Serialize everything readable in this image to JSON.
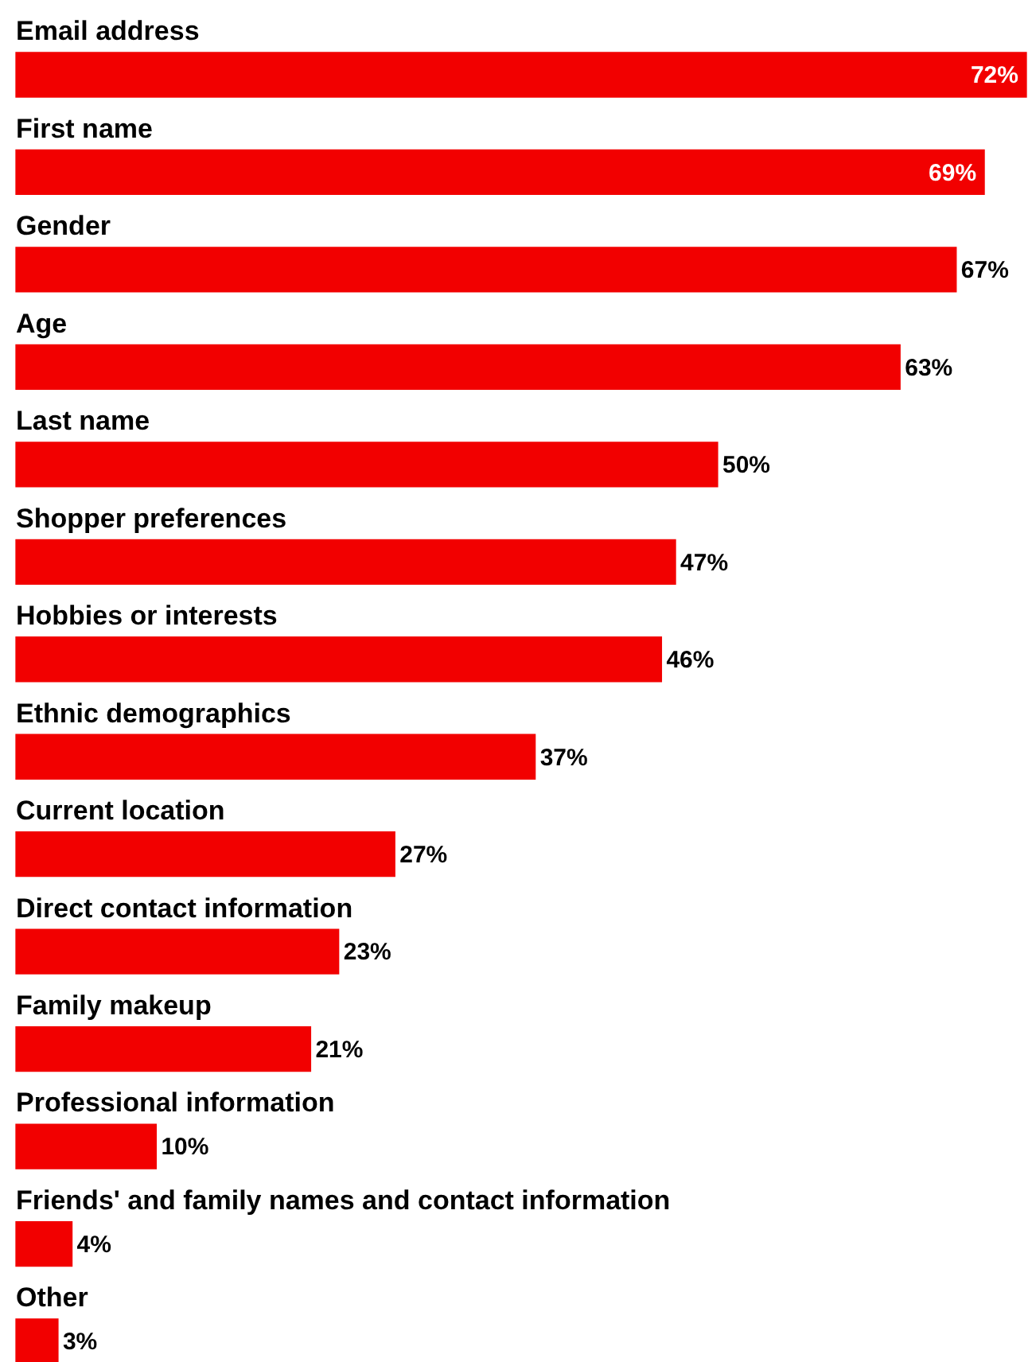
{
  "chart_data": {
    "type": "bar",
    "orientation": "horizontal",
    "categories": [
      "Email address",
      "First name",
      "Gender",
      "Age",
      "Last name",
      "Shopper preferences",
      "Hobbies or interests",
      "Ethnic demographics",
      "Current location",
      "Direct contact information",
      "Family makeup",
      "Professional information",
      "Friends' and family names and contact information",
      "Other"
    ],
    "values": [
      72,
      69,
      67,
      63,
      50,
      47,
      46,
      37,
      27,
      23,
      21,
      10,
      4,
      3
    ],
    "value_labels": [
      "72%",
      "69%",
      "67%",
      "63%",
      "50%",
      "47%",
      "46%",
      "37%",
      "27%",
      "23%",
      "21%",
      "10%",
      "4%",
      "3%"
    ],
    "color": "#f20000"
  }
}
